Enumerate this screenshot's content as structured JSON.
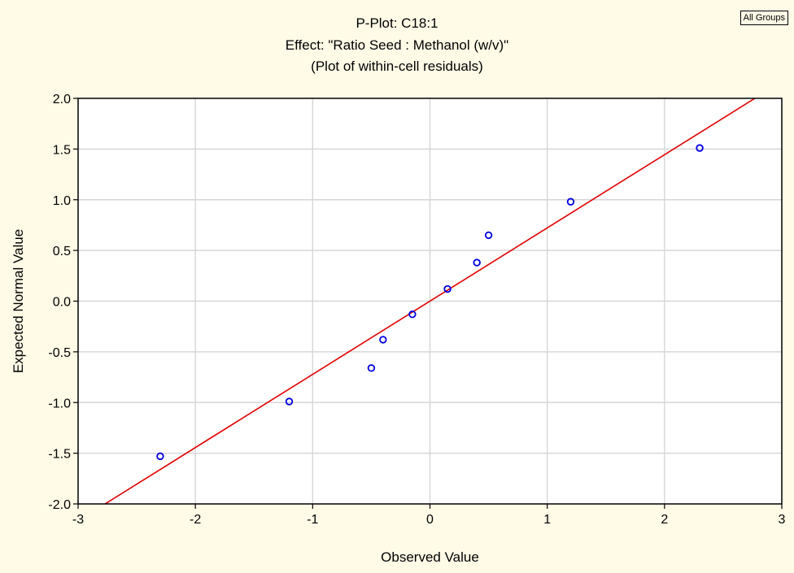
{
  "chart_data": {
    "type": "scatter",
    "title": "P-Plot: C18:1",
    "subtitle": "Effect: \"Ratio Seed : Methanol (w/v)\"",
    "subtitle2": "(Plot of within-cell residuals)",
    "badge": "All Groups",
    "xlabel": "Observed Value",
    "ylabel": "Expected Normal Value",
    "xlim": [
      -3,
      3
    ],
    "ylim": [
      -2.0,
      2.0
    ],
    "xticks": [
      "-3",
      "-2",
      "-1",
      "0",
      "1",
      "2",
      "3"
    ],
    "yticks": [
      "2.0",
      "1.5",
      "1.0",
      "0.5",
      "0.0",
      "-0.5",
      "-1.0",
      "-1.5",
      "-2.0"
    ],
    "grid": true,
    "points": [
      {
        "x": -2.3,
        "y": -1.53
      },
      {
        "x": -1.2,
        "y": -0.99
      },
      {
        "x": -0.5,
        "y": -0.66
      },
      {
        "x": -0.4,
        "y": -0.38
      },
      {
        "x": -0.15,
        "y": -0.13
      },
      {
        "x": 0.15,
        "y": 0.12
      },
      {
        "x": 0.4,
        "y": 0.38
      },
      {
        "x": 0.5,
        "y": 0.65
      },
      {
        "x": 1.2,
        "y": 0.98
      },
      {
        "x": 2.3,
        "y": 1.51
      }
    ],
    "fit_line": {
      "x1": -2.77,
      "y1": -2.0,
      "x2": 2.77,
      "y2": 2.0
    },
    "colors": {
      "points": "#0000e0",
      "line": "#e00000",
      "grid": "#d6d6d6"
    }
  }
}
